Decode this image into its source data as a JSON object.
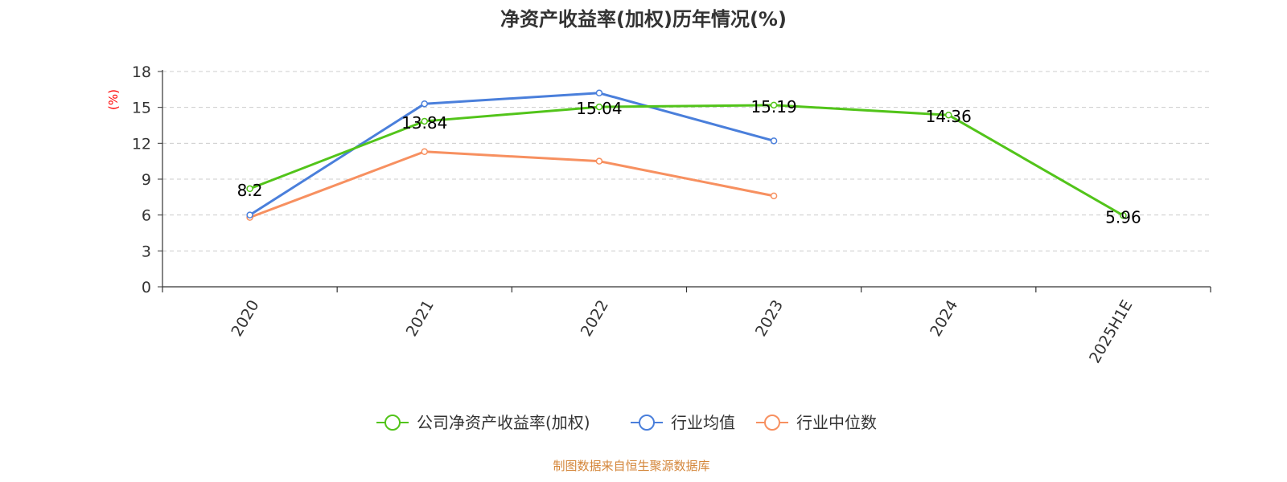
{
  "chart_data": {
    "type": "line",
    "title": "净资产收益率(加权)历年情况(%)",
    "ylabel": "(%)",
    "xlabel": "",
    "categories": [
      "2020",
      "2021",
      "2022",
      "2023",
      "2024",
      "2025H1E"
    ],
    "ylim": [
      0,
      18
    ],
    "yticks": [
      0,
      3,
      6,
      9,
      12,
      15,
      18
    ],
    "grid": true,
    "legend_position": "bottom",
    "series": [
      {
        "name": "公司净资产收益率(加权)",
        "color": "#52c41a",
        "values": [
          8.2,
          13.84,
          15.04,
          15.19,
          14.36,
          5.96
        ],
        "labels": [
          "8.2",
          "13.84",
          "15.04",
          "15.19",
          "14.36",
          "5.96"
        ]
      },
      {
        "name": "行业均值",
        "color": "#4a7fdb",
        "values": [
          6.0,
          15.3,
          16.2,
          12.2,
          null,
          null
        ]
      },
      {
        "name": "行业中位数",
        "color": "#f79060",
        "values": [
          5.8,
          11.3,
          10.5,
          7.6,
          null,
          null
        ]
      }
    ]
  },
  "ylabel_color": "#ff0000",
  "source_text": "制图数据来自恒生聚源数据库",
  "source_color": "#d4863a"
}
